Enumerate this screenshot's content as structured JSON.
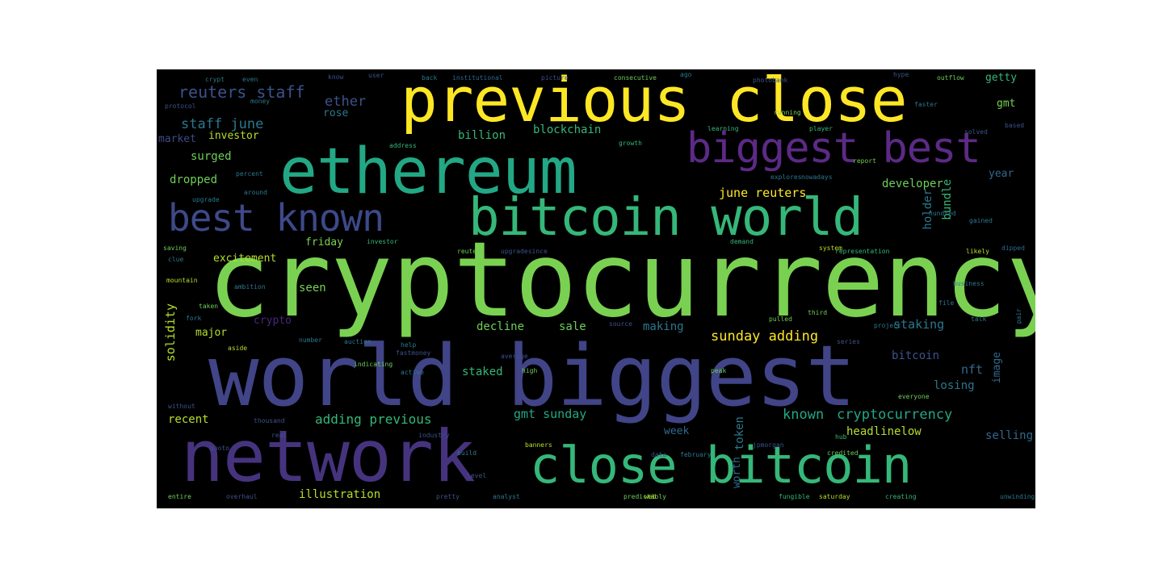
{
  "colors": {
    "background": "#000000",
    "page": "#ffffff",
    "palette": [
      "#fde725",
      "#7ad151",
      "#22a884",
      "#2a788e",
      "#414487",
      "#440154"
    ]
  },
  "words": [
    {
      "text": "cryptocurrency",
      "color": "#7ad151"
    },
    {
      "text": "world biggest",
      "color": "#414487"
    },
    {
      "text": "ethereum",
      "color": "#22a884"
    },
    {
      "text": "previous close",
      "color": "#fde725"
    },
    {
      "text": "network",
      "color": "#46337e"
    },
    {
      "text": "close bitcoin",
      "color": "#35b779"
    },
    {
      "text": "bitcoin world",
      "color": "#35b779"
    },
    {
      "text": "best known",
      "color": "#3e4989"
    },
    {
      "text": "biggest best",
      "color": "#5c2a86"
    },
    {
      "text": "reuters staff",
      "color": "#3b528b"
    },
    {
      "text": "staff june",
      "color": "#2a788e"
    },
    {
      "text": "ether",
      "color": "#3b528b"
    },
    {
      "text": "rose",
      "color": "#2a788e"
    },
    {
      "text": "billion",
      "color": "#35b779"
    },
    {
      "text": "blockchain",
      "color": "#35b779"
    },
    {
      "text": "market",
      "color": "#3e4989"
    },
    {
      "text": "investor",
      "color": "#b5de2b"
    },
    {
      "text": "surged",
      "color": "#6ece58"
    },
    {
      "text": "dropped",
      "color": "#6ece58"
    },
    {
      "text": "june reuters",
      "color": "#fde725"
    },
    {
      "text": "developer",
      "color": "#6ece58"
    },
    {
      "text": "getty",
      "color": "#35b779"
    },
    {
      "text": "gmt",
      "color": "#7ad151"
    },
    {
      "text": "year",
      "color": "#31688e"
    },
    {
      "text": "excitement",
      "color": "#b5de2b"
    },
    {
      "text": "friday",
      "color": "#7ad151"
    },
    {
      "text": "holder",
      "color": "#2a788e"
    },
    {
      "text": "bundle",
      "color": "#35b779"
    },
    {
      "text": "seen",
      "color": "#7ad151"
    },
    {
      "text": "crypto",
      "color": "#482677"
    },
    {
      "text": "solidity",
      "color": "#b5de2b"
    },
    {
      "text": "major",
      "color": "#b5de2b"
    },
    {
      "text": "decline",
      "color": "#6ece58"
    },
    {
      "text": "sale",
      "color": "#6ece58"
    },
    {
      "text": "making",
      "color": "#2a788e"
    },
    {
      "text": "sunday adding",
      "color": "#fde725"
    },
    {
      "text": "staking",
      "color": "#2a788e"
    },
    {
      "text": "bitcoin",
      "color": "#3b528b"
    },
    {
      "text": "nft",
      "color": "#31688e"
    },
    {
      "text": "image",
      "color": "#31688e"
    },
    {
      "text": "losing",
      "color": "#2a788e"
    },
    {
      "text": "staked",
      "color": "#35b779"
    },
    {
      "text": "recent",
      "color": "#b5de2b"
    },
    {
      "text": "adding previous",
      "color": "#35b779"
    },
    {
      "text": "gmt sunday",
      "color": "#22a884"
    },
    {
      "text": "known",
      "color": "#22a884"
    },
    {
      "text": "cryptocurrency",
      "color": "#22a884"
    },
    {
      "text": "headlinelow",
      "color": "#b5de2b"
    },
    {
      "text": "selling",
      "color": "#31688e"
    },
    {
      "text": "week",
      "color": "#31688e"
    },
    {
      "text": "token",
      "color": "#2a788e"
    },
    {
      "text": "worth",
      "color": "#31688e"
    },
    {
      "text": "illustration",
      "color": "#b5de2b"
    },
    {
      "text": "crypt",
      "color": "#2a788e"
    },
    {
      "text": "even",
      "color": "#2a788e"
    },
    {
      "text": "know",
      "color": "#3b528b"
    },
    {
      "text": "user",
      "color": "#3b528b"
    },
    {
      "text": "back",
      "color": "#2a788e"
    },
    {
      "text": "institutional",
      "color": "#31688e"
    },
    {
      "text": "picture",
      "color": "#3b528b"
    },
    {
      "text": "consecutive",
      "color": "#6ece58"
    },
    {
      "text": "ago",
      "color": "#2a788e"
    },
    {
      "text": "photobank",
      "color": "#3b528b"
    },
    {
      "text": "hype",
      "color": "#3b528b"
    },
    {
      "text": "outflow",
      "color": "#6ece58"
    },
    {
      "text": "protocol",
      "color": "#3b528b"
    },
    {
      "text": "money",
      "color": "#2a788e"
    },
    {
      "text": "faster",
      "color": "#2a788e"
    },
    {
      "text": "running",
      "color": "#7ad151"
    },
    {
      "text": "learning",
      "color": "#35b779"
    },
    {
      "text": "player",
      "color": "#35b779"
    },
    {
      "text": "solved",
      "color": "#3b528b"
    },
    {
      "text": "based",
      "color": "#3b528b"
    },
    {
      "text": "address",
      "color": "#35b779"
    },
    {
      "text": "growth",
      "color": "#35b779"
    },
    {
      "text": "report",
      "color": "#6ece58"
    },
    {
      "text": "upgrade",
      "color": "#2a788e"
    },
    {
      "text": "around",
      "color": "#2a788e"
    },
    {
      "text": "percent",
      "color": "#2a788e"
    },
    {
      "text": "explores",
      "color": "#2a788e"
    },
    {
      "text": "nowadays",
      "color": "#2a788e"
    },
    {
      "text": "hundred",
      "color": "#2a788e"
    },
    {
      "text": "saving",
      "color": "#6ece58"
    },
    {
      "text": "investor",
      "color": "#35b779"
    },
    {
      "text": "reuters",
      "color": "#6ece58"
    },
    {
      "text": "upgradesince",
      "color": "#3b528b"
    },
    {
      "text": "demand",
      "color": "#35b779"
    },
    {
      "text": "representation",
      "color": "#35b779"
    },
    {
      "text": "likely",
      "color": "#b5de2b"
    },
    {
      "text": "dipped",
      "color": "#31688e"
    },
    {
      "text": "mountain",
      "color": "#b5de2b"
    },
    {
      "text": "ambition",
      "color": "#2a788e"
    },
    {
      "text": "system",
      "color": "#b5de2b"
    },
    {
      "text": "business",
      "color": "#2a788e"
    },
    {
      "text": "taken",
      "color": "#6ece58"
    },
    {
      "text": "third",
      "color": "#6ece58"
    },
    {
      "text": "pulled",
      "color": "#6ece58"
    },
    {
      "text": "file",
      "color": "#2a788e"
    },
    {
      "text": "source",
      "color": "#3b528b"
    },
    {
      "text": "project",
      "color": "#2a788e"
    },
    {
      "text": "series",
      "color": "#3b528b"
    },
    {
      "text": "number",
      "color": "#2a788e"
    },
    {
      "text": "auction",
      "color": "#2a788e"
    },
    {
      "text": "average",
      "color": "#3b528b"
    },
    {
      "text": "help",
      "color": "#2a788e"
    },
    {
      "text": "indicating",
      "color": "#6ece58"
    },
    {
      "text": "high",
      "color": "#6ece58"
    },
    {
      "text": "peak",
      "color": "#6ece58"
    },
    {
      "text": "everyone",
      "color": "#6ece58"
    },
    {
      "text": "without",
      "color": "#3b528b"
    },
    {
      "text": "thousand",
      "color": "#3b528b"
    },
    {
      "text": "real",
      "color": "#3b528b"
    },
    {
      "text": "industry",
      "color": "#3b528b"
    },
    {
      "text": "hub",
      "color": "#35b779"
    },
    {
      "text": "build",
      "color": "#2a788e"
    },
    {
      "text": "banners",
      "color": "#b5de2b"
    },
    {
      "text": "data",
      "color": "#3b528b"
    },
    {
      "text": "february",
      "color": "#2a788e"
    },
    {
      "text": "jpmorgan",
      "color": "#3b528b"
    },
    {
      "text": "credited",
      "color": "#6ece58"
    },
    {
      "text": "entire",
      "color": "#6ece58"
    },
    {
      "text": "overhaul",
      "color": "#3b528b"
    },
    {
      "text": "pretty",
      "color": "#3b528b"
    },
    {
      "text": "analyst",
      "color": "#2a788e"
    },
    {
      "text": "predictably",
      "color": "#6ece58"
    },
    {
      "text": "web",
      "color": "#b5de2b"
    },
    {
      "text": "fungible",
      "color": "#35b779"
    },
    {
      "text": "saturday",
      "color": "#b5de2b"
    },
    {
      "text": "creating",
      "color": "#35b779"
    },
    {
      "text": "unwinding",
      "color": "#2a788e"
    },
    {
      "text": "photo",
      "color": "#3b528b"
    },
    {
      "text": "fork",
      "color": "#2a788e"
    },
    {
      "text": "clue",
      "color": "#2a788e"
    },
    {
      "text": "level",
      "color": "#3b528b"
    },
    {
      "text": "fastmoney",
      "color": "#3b528b"
    },
    {
      "text": "active",
      "color": "#2a788e"
    },
    {
      "text": "aside",
      "color": "#b5de2b"
    },
    {
      "text": "gained",
      "color": "#2a788e"
    },
    {
      "text": "talk",
      "color": "#2a788e"
    },
    {
      "text": "pair",
      "color": "#2a788e"
    },
    {
      "text": "faithering",
      "color": "#3b528b"
    }
  ]
}
